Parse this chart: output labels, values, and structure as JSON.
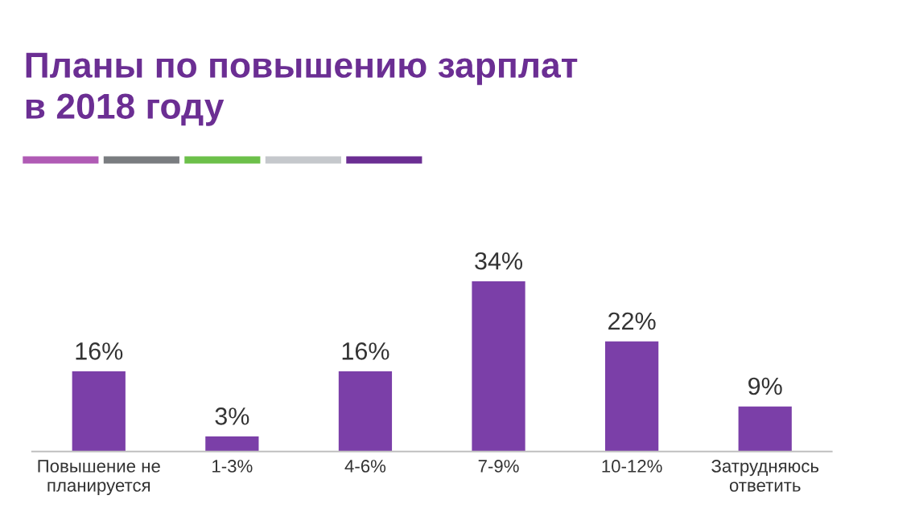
{
  "chart_data": {
    "type": "bar",
    "title": "Планы по повышению зарплат\nв 2018 году",
    "categories": [
      "Повышение не\nпланируется",
      "1-3%",
      "4-6%",
      "7-9%",
      "10-12%",
      "Затрудняюсь\nответить"
    ],
    "values": [
      16,
      3,
      16,
      34,
      22,
      9
    ],
    "value_labels": [
      "16%",
      "3%",
      "16%",
      "34%",
      "22%",
      "9%"
    ],
    "color": "#7b3fa8",
    "grid": false,
    "legend": false
  }
}
